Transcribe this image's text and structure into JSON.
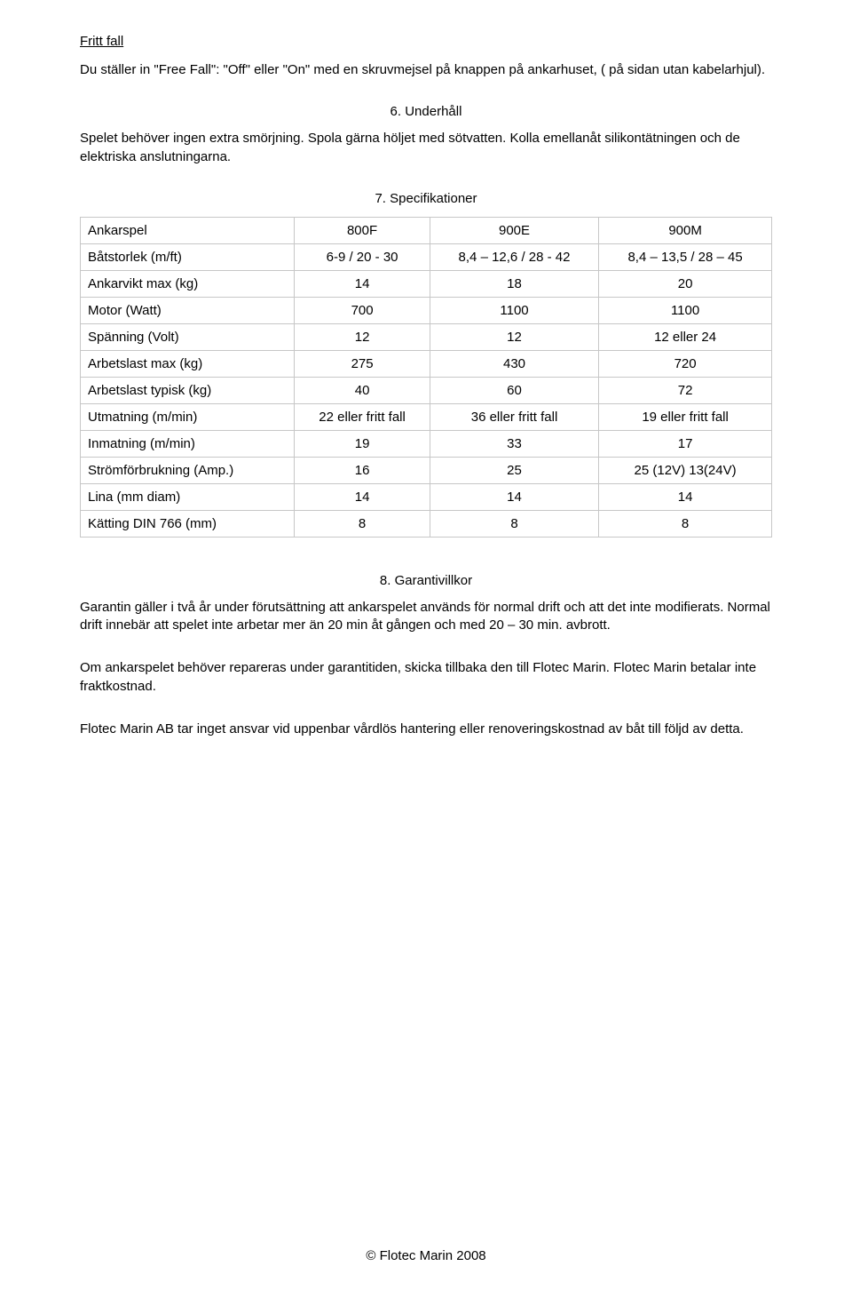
{
  "fritt_fall": {
    "title": "Fritt fall",
    "text": "Du ställer in \"Free Fall\": \"Off\" eller \"On\" med en skruvmejsel på knappen på ankarhuset, ( på sidan utan kabelarhjul)."
  },
  "underhall": {
    "heading": "6. Underhåll",
    "text": "Spelet behöver ingen extra smörjning. Spola gärna höljet med sötvatten. Kolla emellanåt silikontätningen och de elektriska anslutningarna."
  },
  "spec": {
    "heading": "7. Specifikationer",
    "table": {
      "header_row": [
        "Ankarspel",
        "800F",
        "900E",
        "900M"
      ],
      "rows": [
        [
          "Båtstorlek (m/ft)",
          "6-9 / 20 - 30",
          "8,4 – 12,6 / 28 - 42",
          "8,4 – 13,5 / 28 – 45"
        ],
        [
          "Ankarvikt max (kg)",
          "14",
          "18",
          "20"
        ],
        [
          "Motor (Watt)",
          "700",
          "1100",
          "1100"
        ],
        [
          "Spänning (Volt)",
          "12",
          "12",
          "12 eller 24"
        ],
        [
          "Arbetslast max (kg)",
          "275",
          "430",
          "720"
        ],
        [
          "Arbetslast typisk (kg)",
          "40",
          "60",
          "72"
        ],
        [
          "Utmatning (m/min)",
          "22 eller fritt fall",
          "36 eller fritt fall",
          "19 eller fritt fall"
        ],
        [
          "Inmatning (m/min)",
          "19",
          "33",
          "17"
        ],
        [
          "Strömförbrukning (Amp.)",
          "16",
          "25",
          "25 (12V) 13(24V)"
        ],
        [
          "Lina (mm diam)",
          "14",
          "14",
          "14"
        ],
        [
          "Kätting  DIN 766 (mm)",
          "8",
          "8",
          "8"
        ]
      ],
      "border_color": "#c7c7c7",
      "fontsize": 15
    }
  },
  "garanti": {
    "heading": "8. Garantivillkor",
    "para1": "Garantin gäller i två år under förutsättning att ankarspelet används för normal drift och att det inte modifierats. Normal drift innebär att spelet inte arbetar mer än 20 min åt gången och med 20 – 30 min. avbrott.",
    "para2": "Om ankarspelet behöver repareras under garantitiden, skicka tillbaka den till Flotec Marin. Flotec Marin betalar inte fraktkostnad.",
    "para3": "Flotec Marin AB tar inget ansvar vid uppenbar vårdlös hantering eller renoveringskostnad av båt till följd av detta."
  },
  "footer": "© Flotec Marin 2008",
  "style": {
    "background_color": "#ffffff",
    "text_color": "#000000",
    "font_family": "Arial, Helvetica, sans-serif",
    "body_fontsize": 15
  }
}
